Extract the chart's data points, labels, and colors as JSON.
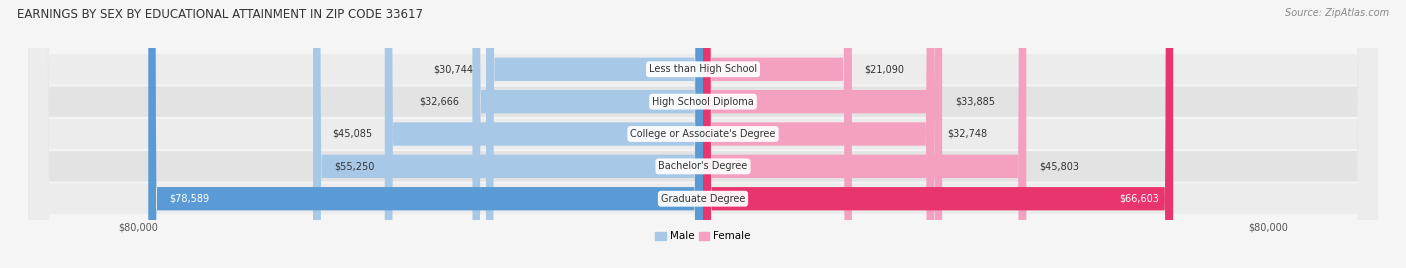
{
  "title": "EARNINGS BY SEX BY EDUCATIONAL ATTAINMENT IN ZIP CODE 33617",
  "source": "Source: ZipAtlas.com",
  "categories": [
    "Less than High School",
    "High School Diploma",
    "College or Associate's Degree",
    "Bachelor's Degree",
    "Graduate Degree"
  ],
  "male_values": [
    30744,
    32666,
    45085,
    55250,
    78589
  ],
  "female_values": [
    21090,
    33885,
    32748,
    45803,
    66603
  ],
  "male_labels": [
    "$30,744",
    "$32,666",
    "$45,085",
    "$55,250",
    "$78,589"
  ],
  "female_labels": [
    "$21,090",
    "$33,885",
    "$32,748",
    "$45,803",
    "$66,603"
  ],
  "male_color": "#a8c8e8",
  "male_color_last": "#5b9bd5",
  "female_color": "#f4a0c0",
  "female_color_last": "#e8356e",
  "row_bg_odd": "#ebebeb",
  "row_bg_even": "#e0e0e0",
  "bg_color": "#f5f5f5",
  "max_value": 80000,
  "title_fontsize": 8.5,
  "source_fontsize": 7,
  "label_fontsize": 7,
  "category_fontsize": 7,
  "axis_label_fontsize": 7
}
